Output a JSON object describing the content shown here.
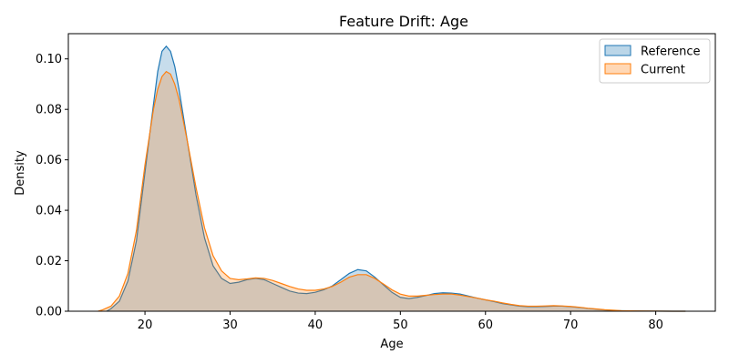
{
  "chart_data": {
    "type": "area",
    "title": "Feature Drift: Age",
    "xlabel": "Age",
    "ylabel": "Density",
    "xlim": [
      11,
      87
    ],
    "ylim": [
      0,
      0.11
    ],
    "xticks": [
      "20",
      "30",
      "40",
      "50",
      "60",
      "70",
      "80"
    ],
    "yticks": [
      "0.00",
      "0.02",
      "0.04",
      "0.06",
      "0.08",
      "0.10"
    ],
    "grid": false,
    "legend_position": "top-right",
    "series": [
      {
        "name": "Reference",
        "line_color": "#1f77b4",
        "fill_color": "#1f77b4",
        "x": [
          15.5,
          16,
          17,
          18,
          19,
          20,
          21,
          21.5,
          22,
          22.5,
          23,
          23.5,
          24,
          25,
          26,
          27,
          28,
          29,
          30,
          31,
          32,
          33,
          34,
          35,
          36,
          37,
          38,
          39,
          40,
          41,
          42,
          43,
          44,
          45,
          46,
          47,
          48,
          49,
          50,
          51,
          52,
          53,
          54,
          55,
          56,
          57,
          58,
          59,
          60,
          61,
          62,
          63,
          64,
          65,
          66,
          67,
          68,
          69,
          70,
          71,
          72,
          73,
          74,
          75,
          76,
          78,
          80,
          82,
          83.5
        ],
        "y": [
          0.0,
          0.001,
          0.004,
          0.012,
          0.028,
          0.055,
          0.082,
          0.095,
          0.103,
          0.105,
          0.103,
          0.097,
          0.088,
          0.067,
          0.046,
          0.029,
          0.018,
          0.013,
          0.011,
          0.0115,
          0.0125,
          0.013,
          0.0125,
          0.011,
          0.0095,
          0.008,
          0.0072,
          0.007,
          0.0075,
          0.0085,
          0.01,
          0.0125,
          0.015,
          0.0165,
          0.016,
          0.0135,
          0.0105,
          0.0075,
          0.0055,
          0.005,
          0.0055,
          0.0062,
          0.007,
          0.0073,
          0.0072,
          0.0068,
          0.006,
          0.0052,
          0.0045,
          0.0038,
          0.003,
          0.0025,
          0.002,
          0.0018,
          0.0018,
          0.0019,
          0.002,
          0.002,
          0.0018,
          0.0015,
          0.0011,
          0.0008,
          0.0005,
          0.0003,
          0.0002,
          0.0001,
          5e-05,
          0.0,
          0.0
        ]
      },
      {
        "name": "Current",
        "line_color": "#ff7f0e",
        "fill_color": "#ff7f0e",
        "x": [
          14.5,
          15,
          16,
          17,
          18,
          19,
          20,
          21,
          21.5,
          22,
          22.5,
          23,
          23.5,
          24,
          25,
          26,
          27,
          28,
          29,
          30,
          31,
          32,
          33,
          34,
          35,
          36,
          37,
          38,
          39,
          40,
          41,
          42,
          43,
          44,
          45,
          46,
          47,
          48,
          49,
          50,
          51,
          52,
          53,
          54,
          55,
          56,
          57,
          58,
          59,
          60,
          61,
          62,
          63,
          64,
          65,
          66,
          67,
          68,
          69,
          70,
          71,
          72,
          73,
          74,
          75,
          76,
          78,
          80,
          82,
          83.5
        ],
        "y": [
          0.0,
          0.0005,
          0.002,
          0.006,
          0.015,
          0.032,
          0.058,
          0.08,
          0.088,
          0.093,
          0.095,
          0.094,
          0.09,
          0.084,
          0.067,
          0.049,
          0.033,
          0.022,
          0.016,
          0.013,
          0.0125,
          0.0128,
          0.0132,
          0.013,
          0.0122,
          0.011,
          0.0098,
          0.0088,
          0.0083,
          0.0083,
          0.0088,
          0.0098,
          0.0115,
          0.0135,
          0.0145,
          0.0145,
          0.013,
          0.0108,
          0.0085,
          0.0068,
          0.006,
          0.006,
          0.0063,
          0.0066,
          0.0068,
          0.0068,
          0.0064,
          0.0058,
          0.0052,
          0.0045,
          0.004,
          0.0033,
          0.0027,
          0.0022,
          0.002,
          0.002,
          0.0021,
          0.0022,
          0.0021,
          0.0019,
          0.0016,
          0.0012,
          0.0009,
          0.0006,
          0.0004,
          0.0002,
          0.0001,
          5e-05,
          0.0,
          0.0
        ]
      }
    ]
  }
}
